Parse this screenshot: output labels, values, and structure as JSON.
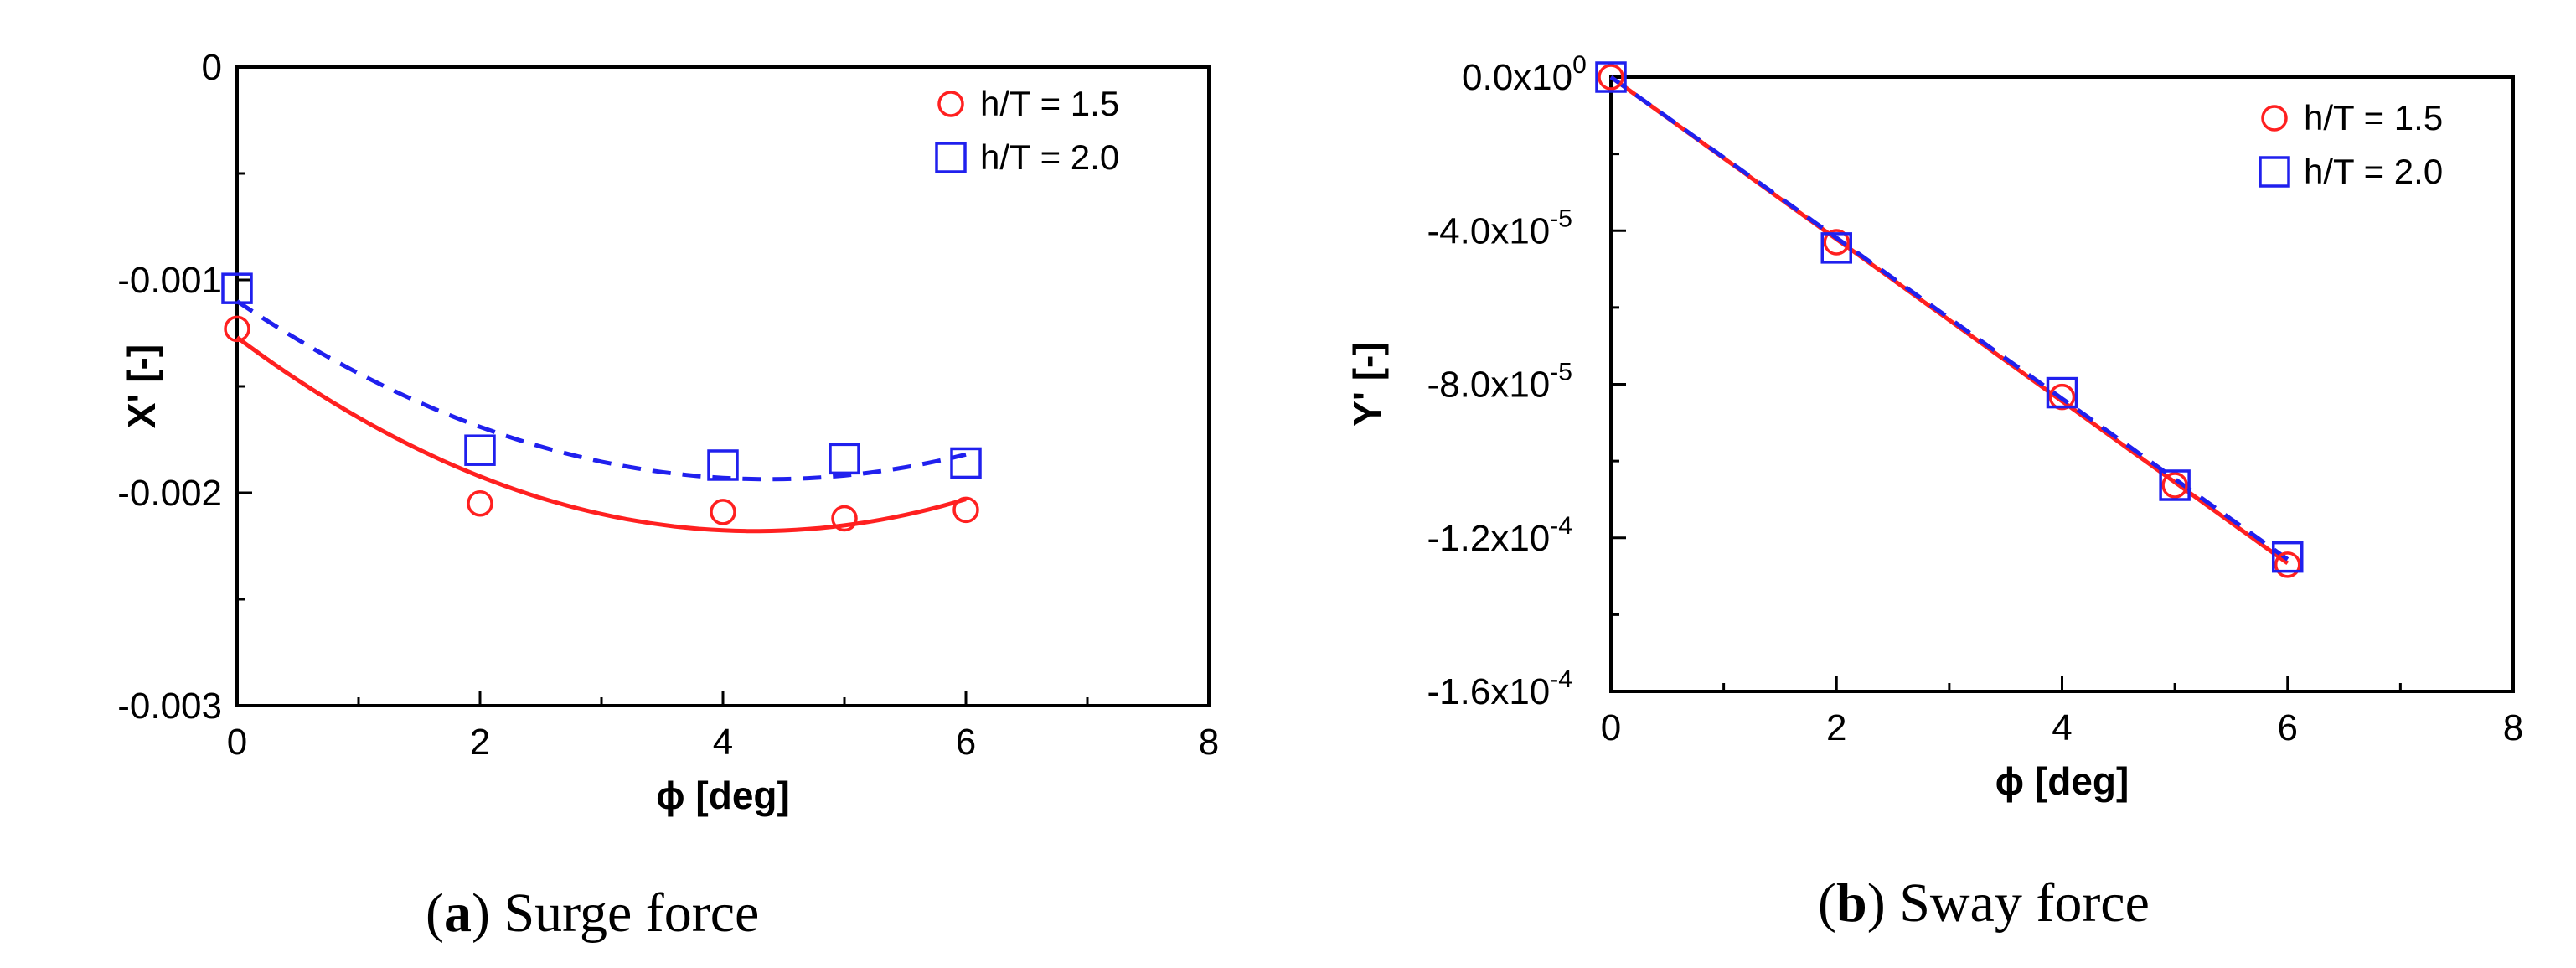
{
  "captions": [
    {
      "letter": "a",
      "text": "Surge force"
    },
    {
      "letter": "b",
      "text": "Sway force"
    }
  ],
  "chart_data": [
    {
      "type": "scatter",
      "xlabel": "ϕ [deg]",
      "ylabel": "X' [-]",
      "xlim": [
        0,
        8
      ],
      "ylim": [
        -0.003,
        0
      ],
      "xticks": [
        0,
        2,
        4,
        6,
        8
      ],
      "xtick_labels": [
        "0",
        "2",
        "4",
        "6",
        "8"
      ],
      "yticks": [
        0,
        -0.001,
        -0.002,
        -0.003
      ],
      "ytick_labels": [
        "0",
        "-0.001",
        "-0.002",
        "-0.003"
      ],
      "grid": false,
      "legend_position": "top-right",
      "series": [
        {
          "name": "h/T = 1.5",
          "marker": "circle",
          "color": "#ff2020",
          "x": [
            0,
            2,
            4,
            5,
            6
          ],
          "y": [
            -0.00123,
            -0.00205,
            -0.00209,
            -0.00212,
            -0.00208
          ],
          "fit": {
            "style": "solid",
            "x": [
              0,
              4.25,
              6
            ],
            "y": [
              -0.00127,
              -0.00218,
              -0.00203
            ]
          }
        },
        {
          "name": "h/T = 2.0",
          "marker": "square",
          "color": "#2020ee",
          "x": [
            0,
            2,
            4,
            5,
            6
          ],
          "y": [
            -0.00104,
            -0.0018,
            -0.00187,
            -0.00184,
            -0.00186
          ],
          "fit": {
            "style": "dashed",
            "x": [
              0,
              4,
              6
            ],
            "y": [
              -0.0011,
              -0.00193,
              -0.00182
            ]
          }
        }
      ]
    },
    {
      "type": "scatter",
      "xlabel": "ϕ [deg]",
      "ylabel": "Y' [-]",
      "xlim": [
        0,
        8
      ],
      "ylim": [
        -0.00016,
        0
      ],
      "xticks": [
        0,
        2,
        4,
        6,
        8
      ],
      "xtick_labels": [
        "0",
        "2",
        "4",
        "6",
        "8"
      ],
      "yticks": [
        0,
        -4e-05,
        -8e-05,
        -0.00012,
        -0.00016
      ],
      "ytick_labels": [
        {
          "mantissa": "0.0x10",
          "exp": "0"
        },
        {
          "mantissa": "-4.0x10",
          "exp": "-5"
        },
        {
          "mantissa": "-8.0x10",
          "exp": "-5"
        },
        {
          "mantissa": "-1.2x10",
          "exp": "-4"
        },
        {
          "mantissa": "-1.6x10",
          "exp": "-4"
        }
      ],
      "grid": false,
      "legend_position": "top-right",
      "series": [
        {
          "name": "h/T = 1.5",
          "marker": "circle",
          "color": "#ff2020",
          "x": [
            0,
            2,
            4,
            5,
            6
          ],
          "y": [
            0,
            -4.3e-05,
            -8.33e-05,
            -0.0001063,
            -0.000127
          ],
          "fit": {
            "style": "solid",
            "x": [
              0,
              3,
              6
            ],
            "y": [
              0,
              -6.33e-05,
              -0.0001266
            ]
          }
        },
        {
          "name": "h/T = 2.0",
          "marker": "square",
          "color": "#2020ee",
          "x": [
            0,
            2,
            4,
            5,
            6
          ],
          "y": [
            0,
            -4.45e-05,
            -8.22e-05,
            -0.0001063,
            -0.000125
          ],
          "fit": {
            "style": "dashed",
            "x": [
              0,
              3,
              6
            ],
            "y": [
              0,
              -6.28e-05,
              -0.0001256
            ]
          }
        }
      ]
    }
  ]
}
